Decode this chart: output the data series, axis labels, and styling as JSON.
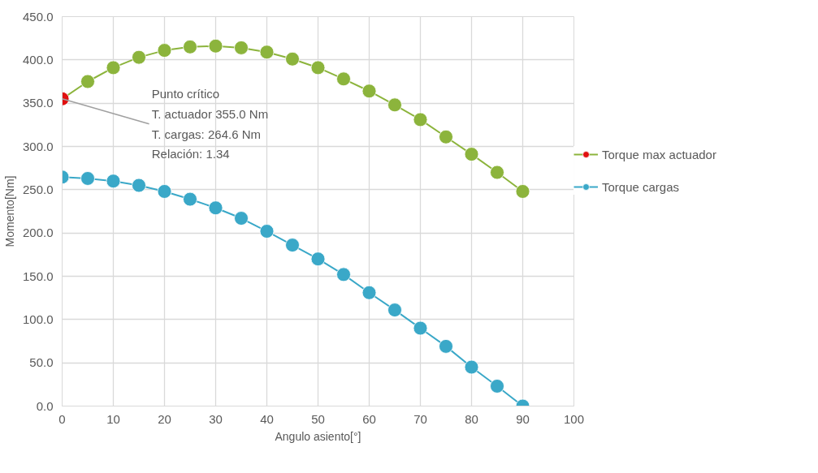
{
  "chart_data": {
    "type": "line",
    "xlabel": "Angulo asiento[°]",
    "ylabel": "Momento[Nm]",
    "x": [
      0,
      5,
      10,
      15,
      20,
      25,
      30,
      35,
      40,
      45,
      50,
      55,
      60,
      65,
      70,
      75,
      80,
      85,
      90
    ],
    "series": [
      {
        "name": "Torque max actuador",
        "color": "#8cb43c",
        "colors": [
          "#e01010",
          "#8cb43c",
          "#8cb43c",
          "#8cb43c",
          "#8cb43c",
          "#8cb43c",
          "#8cb43c",
          "#8cb43c",
          "#8cb43c",
          "#8cb43c",
          "#8cb43c",
          "#8cb43c",
          "#8cb43c",
          "#8cb43c",
          "#8cb43c",
          "#8cb43c",
          "#8cb43c",
          "#8cb43c",
          "#8cb43c"
        ],
        "values": [
          355.0,
          375,
          391,
          403,
          411,
          415,
          416,
          414,
          409,
          401,
          391,
          378,
          364,
          348,
          331,
          311,
          291,
          270,
          248
        ]
      },
      {
        "name": "Torque cargas",
        "color": "#3aa8c8",
        "values": [
          264.6,
          263,
          260,
          255,
          248,
          239,
          229,
          217,
          202,
          186,
          170,
          152,
          131,
          111,
          90,
          69,
          45,
          23,
          0
        ]
      }
    ],
    "xlim": [
      0,
      100
    ],
    "xticks": [
      0,
      10,
      20,
      30,
      40,
      50,
      60,
      70,
      80,
      90,
      100
    ],
    "ylim": [
      0,
      450
    ],
    "yticks": [
      {
        "value": 0,
        "label": "0.0"
      },
      {
        "value": 50,
        "label": "50.0"
      },
      {
        "value": 100,
        "label": "100.0"
      },
      {
        "value": 150,
        "label": "150.0"
      },
      {
        "value": 200,
        "label": "200.0"
      },
      {
        "value": 250,
        "label": "250.0"
      },
      {
        "value": 300,
        "label": "300.0"
      },
      {
        "value": 350,
        "label": "350.0"
      },
      {
        "value": 400,
        "label": "400.0"
      },
      {
        "value": 450,
        "label": "450.0"
      }
    ],
    "grid": true,
    "legend": "right",
    "marker": "circle",
    "line_style": "solid",
    "annotations": [
      {
        "text": "Punto crítico\nT. actuador 355.0 Nm\nT. cargas: 264.6 Nm\nRelación: 1.34",
        "x": 0,
        "y": 355.0
      }
    ]
  }
}
